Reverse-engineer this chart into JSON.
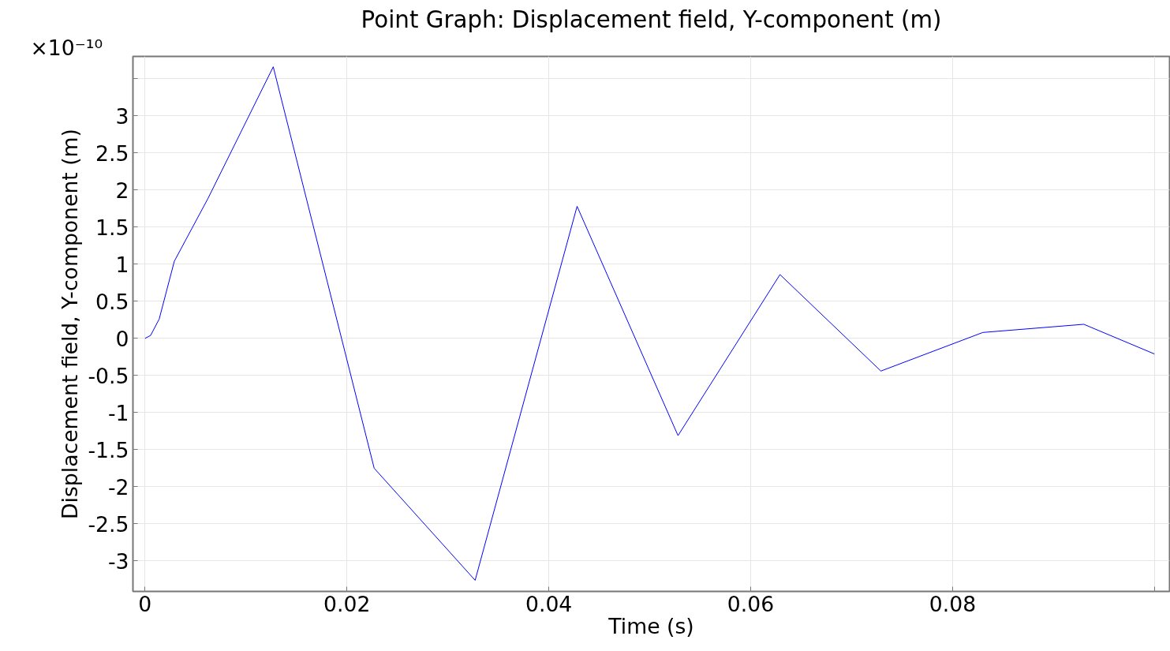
{
  "chart_data": {
    "type": "line",
    "title": "Point Graph: Displacement field, Y-component (m)",
    "xlabel": "Time (s)",
    "ylabel": "Displacement field, Y-component (m)",
    "annotations": [
      "×10⁻¹⁰"
    ],
    "x": [
      0,
      0.00055,
      0.0014,
      0.0029,
      0.00625,
      0.0127,
      0.0227,
      0.0327,
      0.0428,
      0.0528,
      0.0629,
      0.0729,
      0.083,
      0.093,
      0.1
    ],
    "series": [
      {
        "color": "#0000ff",
        "values": [
          0,
          0.04,
          0.26,
          1.04,
          1.89,
          3.66,
          -1.75,
          -3.26,
          1.78,
          -1.31,
          0.86,
          -0.44,
          0.08,
          0.19,
          -0.21
        ]
      }
    ],
    "xlim": [
      -0.0012,
      0.1015
    ],
    "ylim": [
      -3.41,
      3.8
    ],
    "xticks": [
      0,
      0.02,
      0.04,
      0.06,
      0.08,
      {
        "value": 0.1,
        "label": null
      }
    ],
    "yticks": [
      -3,
      -2.5,
      -2,
      -1.5,
      -1,
      -0.5,
      0,
      0.5,
      1,
      1.5,
      2,
      2.5,
      3,
      {
        "value": 3.5,
        "label": null
      }
    ],
    "grid": true,
    "marker": "none",
    "line_style": "solid"
  }
}
